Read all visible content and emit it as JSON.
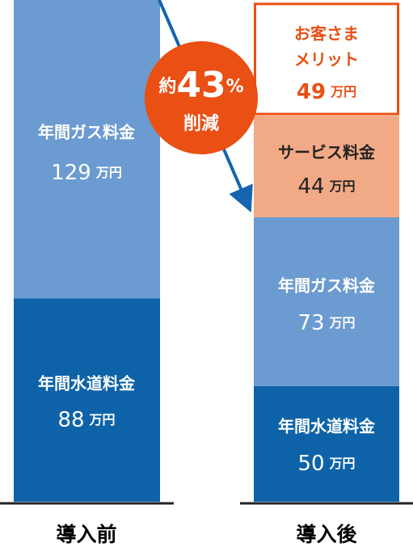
{
  "chart_data": {
    "type": "bar",
    "stacked": true,
    "categories": [
      "導入前",
      "導入後"
    ],
    "unit": "万円",
    "series": [
      {
        "name": "年間水道料金",
        "values": [
          88,
          50
        ]
      },
      {
        "name": "年間ガス料金",
        "values": [
          129,
          73
        ]
      },
      {
        "name": "サービス料金",
        "values": [
          0,
          44
        ]
      },
      {
        "name": "お客さまメリット",
        "values": [
          0,
          49
        ]
      }
    ],
    "ylim": [
      0,
      217
    ]
  },
  "reduction_badge": {
    "prefix": "約",
    "number": "43",
    "percent": "%",
    "label": "削減"
  },
  "labels": {
    "before": {
      "gas_name": "年間ガス料金",
      "gas_value": "129",
      "water_name": "年間水道料金",
      "water_value": "88"
    },
    "after": {
      "merit_name_line1": "お客さま",
      "merit_name_line2": "メリット",
      "merit_value": "49",
      "service_name": "サービス料金",
      "service_value": "44",
      "gas_name": "年間ガス料金",
      "gas_value": "73",
      "water_name": "年間水道料金",
      "water_value": "50"
    },
    "unit": "万円"
  },
  "colors": {
    "water": "#0e63a8",
    "gas": "#6b9bd0",
    "service": "#f2aa86",
    "merit_border": "#ea4f13",
    "badge": "#ea4f13",
    "arrow": "#1565b0",
    "before_label": "#222222",
    "after_label": "#ea4f13",
    "baseline": "#222222"
  }
}
